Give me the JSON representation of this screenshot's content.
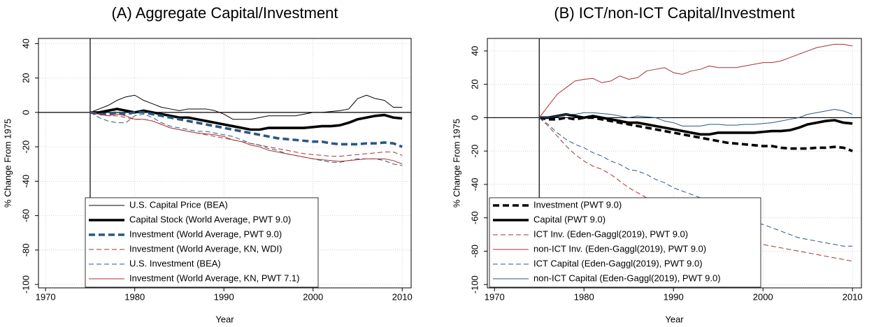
{
  "chart_data": [
    {
      "type": "line",
      "title": "(A) Aggregate Capital/Investment",
      "x_label": "Year",
      "y_label": "% Change From 1975",
      "x": [
        1975,
        1976,
        1977,
        1978,
        1979,
        1980,
        1981,
        1982,
        1983,
        1984,
        1985,
        1986,
        1987,
        1988,
        1989,
        1990,
        1991,
        1992,
        1993,
        1994,
        1995,
        1996,
        1997,
        1998,
        1999,
        2000,
        2001,
        2002,
        2003,
        2004,
        2005,
        2006,
        2007,
        2008,
        2009,
        2010
      ],
      "xlim": [
        1969.2,
        2011
      ],
      "ylim": [
        -102,
        43
      ],
      "xticks": [
        1970,
        1980,
        1990,
        2000,
        2010
      ],
      "yticks": [
        -100,
        -80,
        -60,
        -40,
        -20,
        0,
        20,
        40
      ],
      "vline": 1975,
      "hline": 0,
      "grid": true,
      "legend": "lower left",
      "series": [
        {
          "name": "U.S. Capital Price (BEA)",
          "color": "#000000",
          "line_style": "solid",
          "weight": "thin",
          "values": [
            0,
            2,
            4,
            7,
            9,
            10,
            7,
            5,
            3,
            2,
            1,
            2,
            2,
            2,
            1,
            -1,
            -4,
            -4,
            -4,
            -3,
            -2,
            -2,
            -2,
            -2,
            -1,
            0,
            0,
            0.5,
            1,
            2,
            8,
            10,
            8,
            7,
            3,
            3
          ]
        },
        {
          "name": "Capital Stock (World Average, PWT 9.0)",
          "color": "#000000",
          "line_style": "solid",
          "weight": "thick",
          "values": [
            0,
            0,
            1,
            2,
            1,
            0,
            1,
            0,
            -1,
            -2,
            -3,
            -3,
            -4,
            -5,
            -6,
            -7,
            -8,
            -9,
            -10,
            -10,
            -9,
            -9,
            -9,
            -9,
            -9,
            -8.5,
            -8,
            -8,
            -7.5,
            -6,
            -4,
            -3,
            -2,
            -1.5,
            -3,
            -3.5
          ]
        },
        {
          "name": "Investment (World Average, PWT 9.0)",
          "color": "#2a5783",
          "line_style": "dashed",
          "weight": "thick",
          "values": [
            0,
            -1,
            -1,
            0,
            -1,
            0,
            0,
            -1,
            -2,
            -3,
            -4,
            -5,
            -6,
            -7,
            -8,
            -9,
            -10,
            -11,
            -12,
            -13,
            -14,
            -15,
            -15.5,
            -16,
            -16.5,
            -17,
            -17,
            -18,
            -18.5,
            -18.5,
            -18.5,
            -18,
            -18,
            -17.5,
            -18,
            -20
          ]
        },
        {
          "name": "Investment (World Average, KN, WDI)",
          "color": "#a83232",
          "line_style": "dashed",
          "weight": "thin",
          "values": [
            0,
            -1,
            -2,
            -2,
            -3,
            -4,
            -4,
            -5,
            -7,
            -9,
            -10,
            -11,
            -12,
            -13,
            -14,
            -15,
            -16,
            -17,
            -18,
            -19,
            -20,
            -21,
            -22,
            -23,
            -24,
            -24.5,
            -25,
            -25.5,
            -25.5,
            -25,
            -24.5,
            -24,
            -23.5,
            -23,
            -23,
            -25
          ]
        },
        {
          "name": "U.S. Investment (BEA)",
          "color": "#2a5783",
          "line_style": "dashed",
          "weight": "thin",
          "values": [
            0,
            -3,
            -5,
            -6,
            -6,
            -2,
            -1,
            -3,
            -6,
            -8,
            -9,
            -10,
            -11,
            -11,
            -12,
            -13,
            -14,
            -16,
            -18,
            -19,
            -21,
            -22,
            -24,
            -25,
            -26,
            -27,
            -28,
            -29,
            -29,
            -28,
            -27,
            -27,
            -27,
            -28,
            -30,
            -31
          ]
        },
        {
          "name": "Investment (World Average, KN, PWT 7.1)",
          "color": "#a83232",
          "line_style": "solid",
          "weight": "thin",
          "values": [
            0,
            -1,
            -2,
            -1,
            -2,
            -4,
            -4,
            -5,
            -7,
            -9,
            -10,
            -11,
            -12,
            -12.5,
            -13,
            -14,
            -16,
            -17,
            -19,
            -20,
            -22,
            -23,
            -24,
            -25,
            -26,
            -27,
            -27.5,
            -28,
            -28.5,
            -28,
            -27.5,
            -27,
            -27,
            -27,
            -28,
            -30
          ]
        }
      ]
    },
    {
      "type": "line",
      "title": "(B) ICT/non-ICT Capital/Investment",
      "x_label": "Year",
      "y_label": "% Change From 1975",
      "x": [
        1975,
        1976,
        1977,
        1978,
        1979,
        1980,
        1981,
        1982,
        1983,
        1984,
        1985,
        1986,
        1987,
        1988,
        1989,
        1990,
        1991,
        1992,
        1993,
        1994,
        1995,
        1996,
        1997,
        1998,
        1999,
        2000,
        2001,
        2002,
        2003,
        2004,
        2005,
        2006,
        2007,
        2008,
        2009,
        2010
      ],
      "xlim": [
        1969.2,
        2011
      ],
      "ylim": [
        -102,
        47.5
      ],
      "xticks": [
        1970,
        1980,
        1990,
        2000,
        2010
      ],
      "yticks": [
        -100,
        -80,
        -60,
        -40,
        -20,
        0,
        20,
        40
      ],
      "vline": 1975,
      "hline": 0,
      "grid": true,
      "legend": "lower left",
      "series": [
        {
          "name": "Investment (PWT 9.0)",
          "color": "#000000",
          "line_style": "dashed",
          "weight": "thick",
          "values": [
            0,
            -1,
            -1,
            0,
            -1,
            0,
            0,
            -1,
            -2,
            -3,
            -4,
            -5,
            -6,
            -7,
            -8,
            -9,
            -10,
            -11,
            -12,
            -13,
            -14,
            -15,
            -15.5,
            -16,
            -16.5,
            -17,
            -17,
            -18,
            -18.5,
            -18.5,
            -18.5,
            -18,
            -18,
            -17.5,
            -18,
            -20
          ]
        },
        {
          "name": "Capital (PWT 9.0)",
          "color": "#000000",
          "line_style": "solid",
          "weight": "thick",
          "values": [
            0,
            0,
            1,
            2,
            1,
            0,
            1,
            0,
            -1,
            -2,
            -3,
            -3,
            -4,
            -5,
            -6,
            -7,
            -8,
            -9,
            -10,
            -10,
            -9,
            -9,
            -9,
            -9,
            -9,
            -8.5,
            -8,
            -8,
            -7.5,
            -6,
            -4,
            -3,
            -2,
            -1.5,
            -3,
            -3.5
          ]
        },
        {
          "name": "ICT Inv. (Eden-Gaggl(2019), PWT 9.0)",
          "color": "#a83232",
          "line_style": "dashed",
          "weight": "thin",
          "values": [
            0,
            -5,
            -11,
            -17,
            -22,
            -26,
            -29,
            -31,
            -34,
            -38,
            -42,
            -45,
            -48,
            -51,
            -54,
            -56,
            -58,
            -60,
            -62,
            -64,
            -66,
            -68,
            -70,
            -72,
            -74,
            -76,
            -77,
            -78,
            -79,
            -80,
            -81,
            -82,
            -83,
            -84,
            -85,
            -86
          ]
        },
        {
          "name": "non-ICT Inv. (Eden-Gaggl(2019), PWT 9.0)",
          "color": "#a83232",
          "line_style": "solid",
          "weight": "thin",
          "values": [
            0,
            7,
            14,
            18,
            22,
            23,
            23.5,
            21,
            22,
            25,
            23,
            24,
            28,
            29,
            30,
            27,
            26,
            28,
            29,
            31,
            30,
            30,
            30,
            31,
            32,
            33,
            33,
            34,
            36,
            38,
            40,
            42,
            43,
            44,
            44,
            43
          ]
        },
        {
          "name": "ICT Capital (Eden-Gaggl(2019), PWT 9.0)",
          "color": "#2a5783",
          "line_style": "dashed",
          "weight": "thin",
          "values": [
            0,
            -4,
            -9,
            -13,
            -16,
            -18,
            -21,
            -23,
            -26,
            -28,
            -31,
            -32,
            -34,
            -37,
            -39,
            -42,
            -44,
            -46,
            -48,
            -51,
            -53,
            -55,
            -58,
            -60,
            -63,
            -64,
            -66,
            -68,
            -70,
            -72,
            -73,
            -74,
            -75,
            -76,
            -77,
            -77
          ]
        },
        {
          "name": "non-ICT Capital (Eden-Gaggl(2019), PWT 9.0)",
          "color": "#2a5783",
          "line_style": "solid",
          "weight": "thin",
          "values": [
            0,
            0,
            1,
            2,
            2,
            3,
            3,
            2.5,
            2,
            1,
            0,
            1,
            0.5,
            0,
            -2,
            -3,
            -5,
            -5,
            -5,
            -4,
            -4,
            -4.5,
            -4.5,
            -4,
            -4,
            -3.5,
            -3,
            -2,
            -1,
            0,
            2,
            3,
            4,
            5,
            4,
            2
          ]
        }
      ]
    }
  ]
}
